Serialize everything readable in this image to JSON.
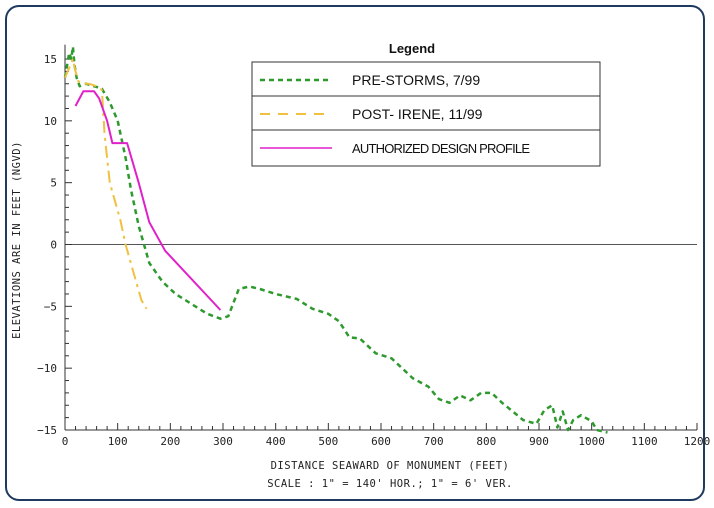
{
  "chart_data": {
    "type": "line",
    "title": "",
    "xlabel": "DISTANCE SEAWARD OF MONUMENT (FEET)",
    "xlabel_sub": "SCALE :  1\" = 140' HOR.;  1\" = 6' VER.",
    "ylabel": "ELEVATIONS ARE IN FEET (NGVD)",
    "xlim": [
      0,
      1200
    ],
    "ylim": [
      -15,
      16
    ],
    "x_ticks": [
      0,
      100,
      200,
      300,
      400,
      500,
      600,
      700,
      800,
      900,
      1000,
      1100,
      1200
    ],
    "y_ticks": [
      15,
      10,
      5,
      0,
      -5,
      -10,
      -15
    ],
    "zero_line": true,
    "legend": {
      "title": "Legend",
      "position": "top-right"
    },
    "series": [
      {
        "name": "PRE-STORMS, 7/99",
        "color": "#2e9a2e",
        "style": "dashed",
        "x": [
          0,
          8,
          12,
          15,
          18,
          22,
          28,
          40,
          55,
          70,
          85,
          100,
          115,
          125,
          140,
          160,
          185,
          210,
          240,
          270,
          295,
          310,
          330,
          350,
          370,
          400,
          440,
          470,
          500,
          520,
          540,
          560,
          590,
          620,
          640,
          660,
          690,
          710,
          730,
          750,
          770,
          790,
          810,
          830,
          850,
          870,
          895,
          910,
          925,
          935,
          945,
          955,
          965,
          980,
          1000,
          1010,
          1030
        ],
        "y": [
          13.5,
          15.5,
          15.0,
          16.0,
          14.5,
          13.5,
          12.8,
          13.0,
          12.8,
          12.6,
          11.5,
          10.0,
          7.0,
          4.5,
          1.5,
          -1.5,
          -3.0,
          -4.0,
          -4.8,
          -5.6,
          -6.0,
          -5.8,
          -3.6,
          -3.4,
          -3.6,
          -4.0,
          -4.4,
          -5.2,
          -5.6,
          -6.2,
          -7.5,
          -7.6,
          -8.8,
          -9.2,
          -10.0,
          -10.8,
          -11.5,
          -12.5,
          -12.8,
          -12.2,
          -12.6,
          -12.0,
          -12.0,
          -12.8,
          -13.5,
          -14.2,
          -14.5,
          -13.4,
          -13.0,
          -14.8,
          -13.5,
          -15.0,
          -14.2,
          -13.8,
          -14.3,
          -15.0,
          -15.2
        ]
      },
      {
        "name": "POST- IRENE, 11/99",
        "color": "#f0c040",
        "style": "dashdot",
        "x": [
          0,
          10,
          15,
          20,
          25,
          35,
          45,
          60,
          70,
          75,
          80,
          85,
          95,
          105,
          115,
          125,
          135,
          145,
          155
        ],
        "y": [
          13.5,
          14.5,
          15.0,
          14.0,
          13.2,
          13.0,
          13.0,
          12.8,
          12.5,
          9.0,
          7.0,
          5.0,
          3.5,
          2.0,
          0.0,
          -1.5,
          -3.0,
          -4.5,
          -5.2
        ]
      },
      {
        "name": "AUTHORIZED DESIGN PROFILE",
        "color": "#e020c8",
        "style": "solid",
        "x": [
          20,
          35,
          55,
          65,
          80,
          90,
          105,
          118,
          140,
          160,
          190,
          295
        ],
        "y": [
          11.2,
          12.4,
          12.4,
          11.8,
          10.0,
          8.2,
          8.2,
          8.2,
          5.0,
          1.8,
          -0.5,
          -5.3
        ]
      }
    ]
  }
}
